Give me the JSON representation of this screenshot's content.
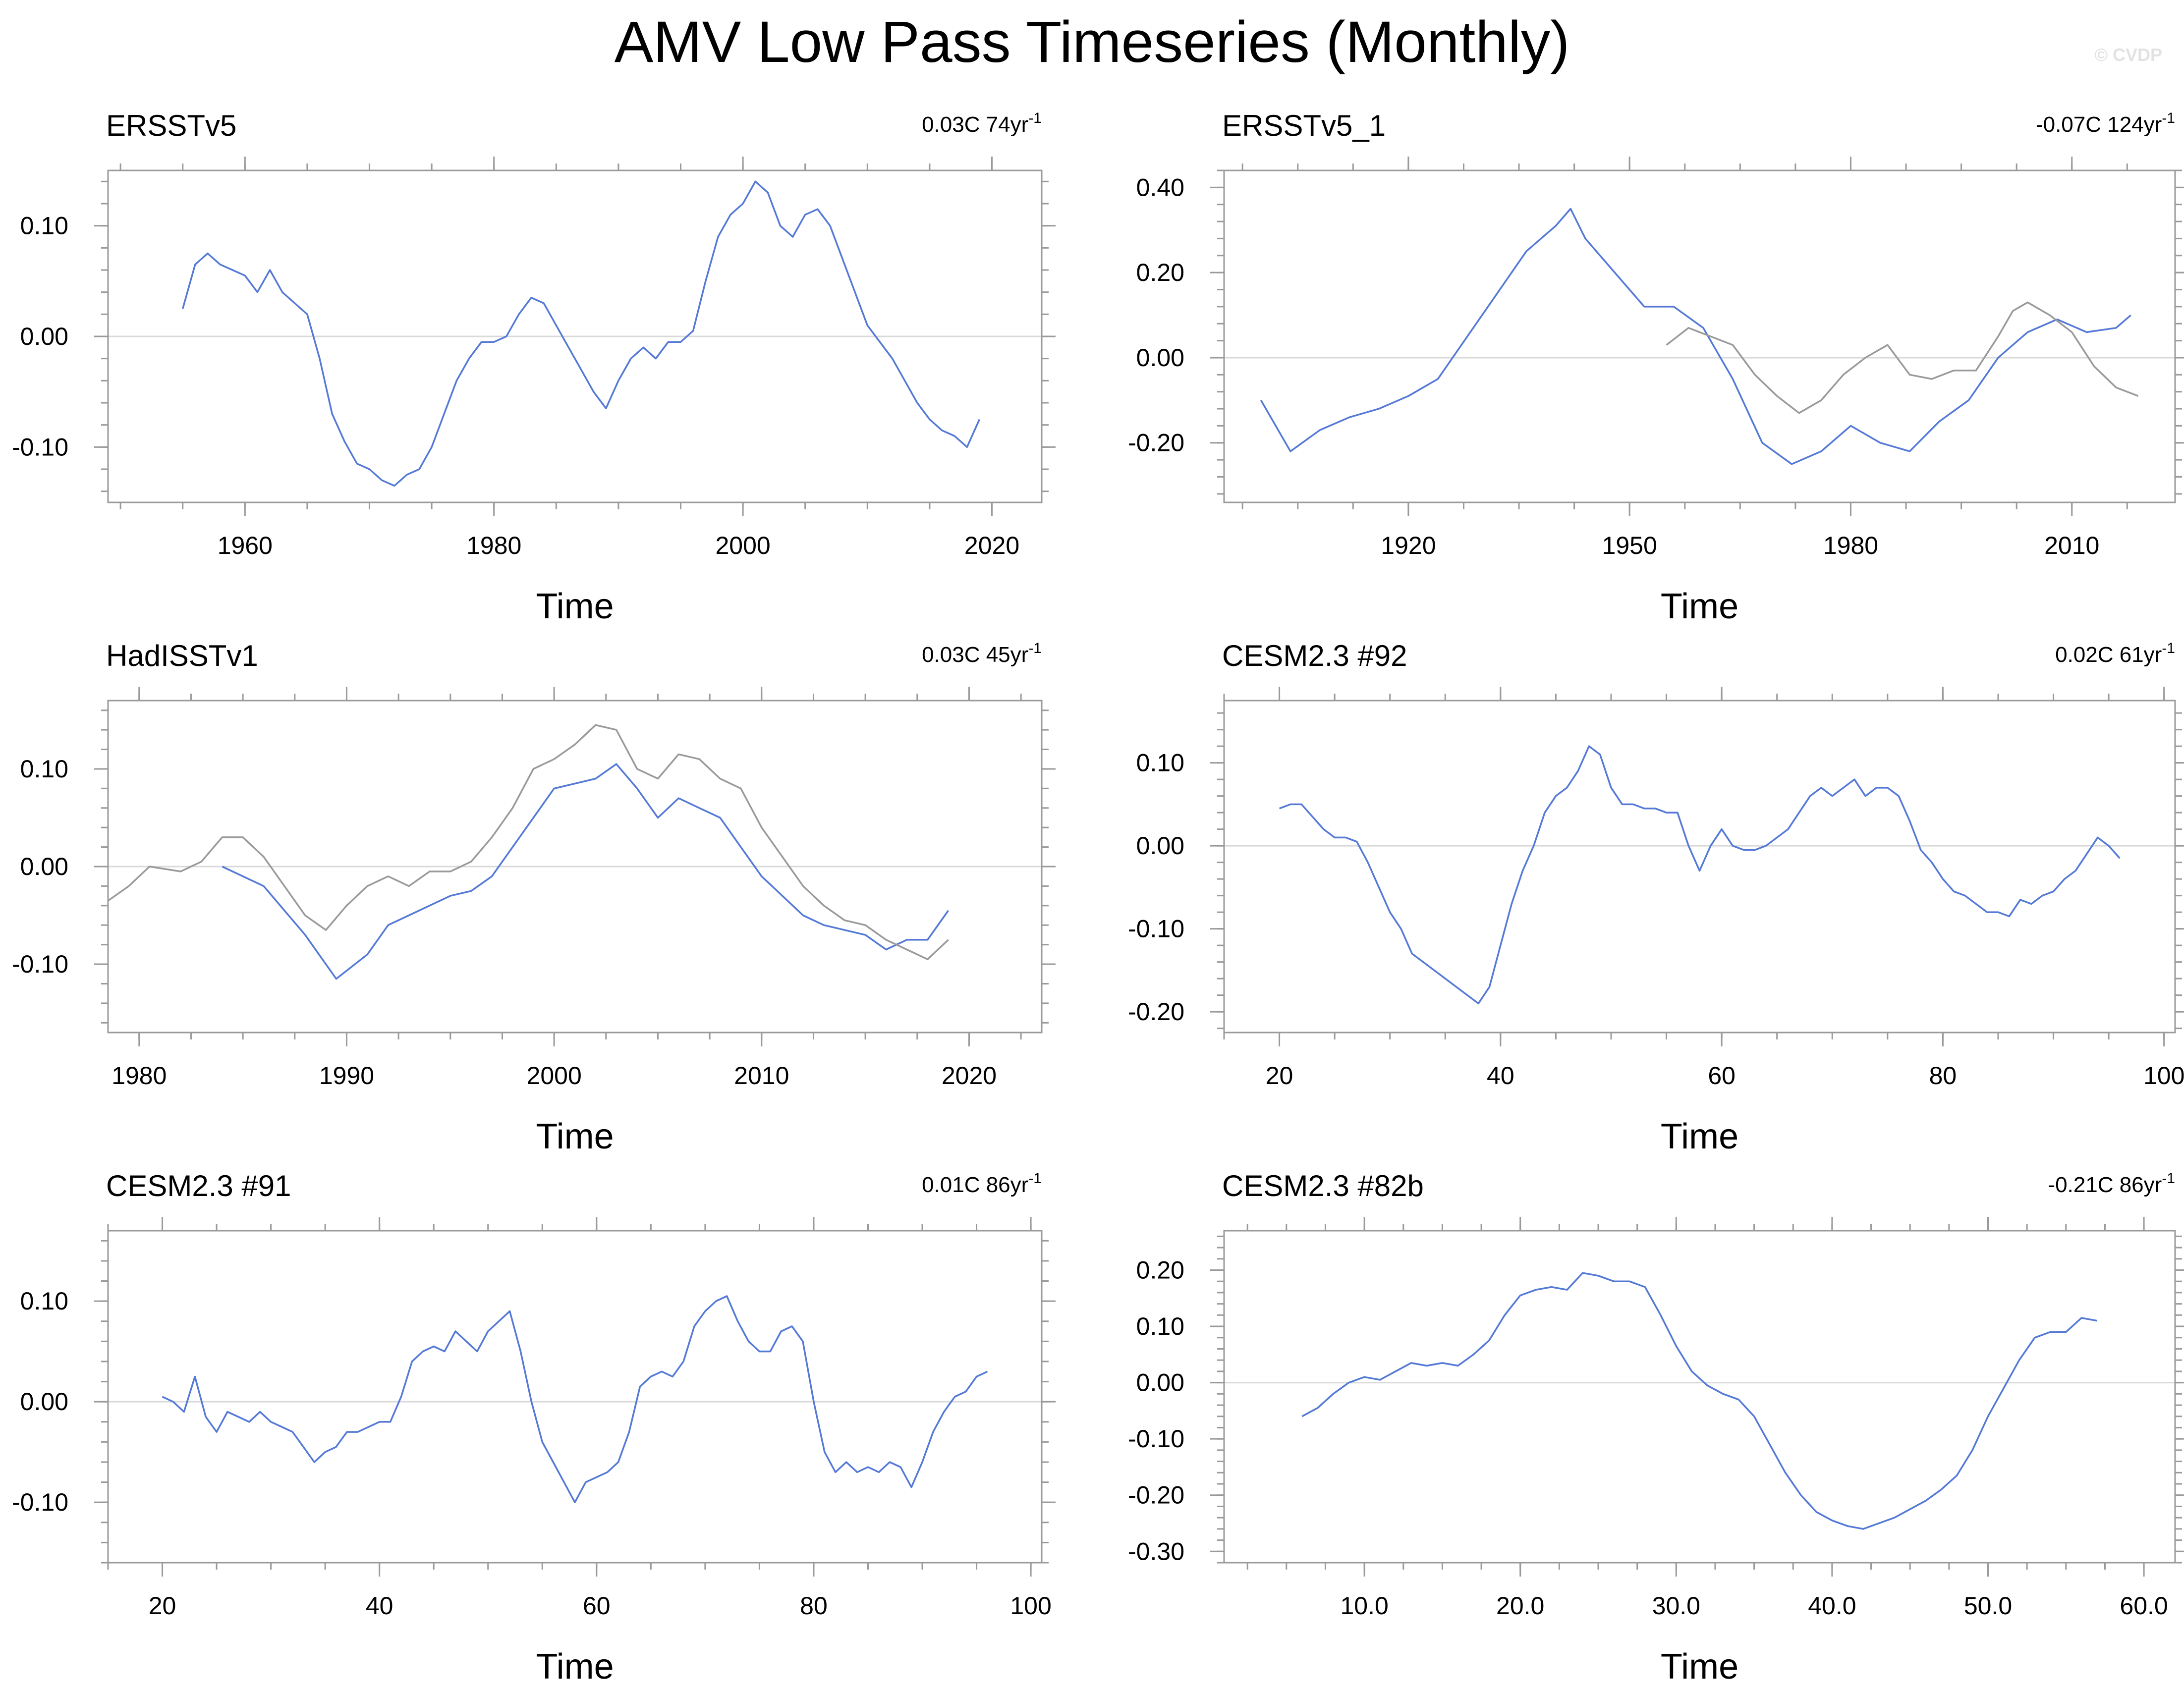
{
  "figure": {
    "title": "AMV Low Pass Timeseries (Monthly)",
    "watermark": "© CVDP",
    "colors": {
      "primary": "#5479d6",
      "secondary": "#9a9a9a",
      "frame": "#9a9a9a",
      "zero_line": "#d9d9d9"
    }
  },
  "chart_data": [
    {
      "type": "line",
      "title": "ERSSTv5",
      "trend": "0.03C 74yr",
      "trend_sup": "-1",
      "xlabel": "Time",
      "xlim": [
        1949,
        2024
      ],
      "ylim": [
        -0.15,
        0.15
      ],
      "xticks": [
        1960,
        1980,
        2000,
        2020
      ],
      "xtick_labels": [
        "1960",
        "1980",
        "2000",
        "2020"
      ],
      "yticks": [
        -0.1,
        0.0,
        0.1
      ],
      "ytick_labels": [
        "-0.10",
        "0.00",
        "0.10"
      ],
      "series": [
        {
          "name": "ERSSTv5",
          "color": "#5479d6",
          "x": [
            1955,
            1956,
            1957,
            1958,
            1959,
            1960,
            1961,
            1962,
            1963,
            1964,
            1965,
            1966,
            1967,
            1968,
            1969,
            1970,
            1971,
            1972,
            1973,
            1974,
            1975,
            1976,
            1977,
            1978,
            1979,
            1980,
            1981,
            1982,
            1983,
            1984,
            1985,
            1986,
            1987,
            1988,
            1989,
            1990,
            1991,
            1992,
            1993,
            1994,
            1995,
            1996,
            1997,
            1998,
            1999,
            2000,
            2001,
            2002,
            2003,
            2004,
            2005,
            2006,
            2007,
            2008,
            2009,
            2010,
            2011,
            2012,
            2013,
            2014,
            2015,
            2016,
            2017,
            2018,
            2019
          ],
          "y": [
            0.025,
            0.065,
            0.075,
            0.065,
            0.06,
            0.055,
            0.04,
            0.06,
            0.04,
            0.03,
            0.02,
            -0.02,
            -0.07,
            -0.095,
            -0.115,
            -0.12,
            -0.13,
            -0.135,
            -0.125,
            -0.12,
            -0.1,
            -0.07,
            -0.04,
            -0.02,
            -0.005,
            -0.005,
            0.0,
            0.02,
            0.035,
            0.03,
            0.01,
            -0.01,
            -0.03,
            -0.05,
            -0.065,
            -0.04,
            -0.02,
            -0.01,
            -0.02,
            -0.005,
            -0.005,
            0.005,
            0.05,
            0.09,
            0.11,
            0.12,
            0.14,
            0.13,
            0.1,
            0.09,
            0.11,
            0.115,
            0.1,
            0.07,
            0.04,
            0.01,
            -0.005,
            -0.02,
            -0.04,
            -0.06,
            -0.075,
            -0.085,
            -0.09,
            -0.1,
            -0.075
          ]
        }
      ]
    },
    {
      "type": "line",
      "title": "ERSSTv5_1",
      "trend": "-0.07C 124yr",
      "trend_sup": "-1",
      "xlabel": "Time",
      "xlim": [
        1895,
        2024
      ],
      "ylim": [
        -0.34,
        0.44
      ],
      "xticks": [
        1920,
        1950,
        1980,
        2010
      ],
      "xtick_labels": [
        "1920",
        "1950",
        "1980",
        "2010"
      ],
      "yticks": [
        -0.2,
        0.0,
        0.2,
        0.4
      ],
      "ytick_labels": [
        "-0.20",
        "0.00",
        "0.20",
        "0.40"
      ],
      "series": [
        {
          "name": "ERSSTv5_1",
          "color": "#5479d6",
          "x": [
            1900,
            1904,
            1908,
            1912,
            1916,
            1920,
            1924,
            1928,
            1932,
            1936,
            1940,
            1942,
            1944,
            1948,
            1952,
            1956,
            1960,
            1964,
            1968,
            1972,
            1976,
            1980,
            1984,
            1988,
            1992,
            1996,
            2000,
            2004,
            2008,
            2012,
            2016,
            2018
          ],
          "y": [
            -0.1,
            -0.22,
            -0.17,
            -0.14,
            -0.12,
            -0.09,
            -0.05,
            0.05,
            0.15,
            0.25,
            0.31,
            0.35,
            0.28,
            0.2,
            0.12,
            0.12,
            0.07,
            -0.05,
            -0.2,
            -0.25,
            -0.22,
            -0.16,
            -0.2,
            -0.22,
            -0.15,
            -0.1,
            0.0,
            0.06,
            0.09,
            0.06,
            0.07,
            0.1
          ]
        },
        {
          "name": "HadISSTv1",
          "color": "#9a9a9a",
          "x": [
            1955,
            1958,
            1961,
            1964,
            1967,
            1970,
            1973,
            1976,
            1979,
            1982,
            1985,
            1988,
            1991,
            1994,
            1997,
            2000,
            2002,
            2004,
            2007,
            2010,
            2013,
            2016,
            2019
          ],
          "y": [
            0.03,
            0.07,
            0.05,
            0.03,
            -0.04,
            -0.09,
            -0.13,
            -0.1,
            -0.04,
            0.0,
            0.03,
            -0.04,
            -0.05,
            -0.03,
            -0.03,
            0.05,
            0.11,
            0.13,
            0.1,
            0.06,
            -0.02,
            -0.07,
            -0.09
          ]
        }
      ]
    },
    {
      "type": "line",
      "title": "HadISSTv1",
      "trend": "0.03C 45yr",
      "trend_sup": "-1",
      "xlabel": "Time",
      "xlim": [
        1978.5,
        2023.5
      ],
      "ylim": [
        -0.17,
        0.17
      ],
      "xticks": [
        1980,
        1990,
        2000,
        2010,
        2020
      ],
      "xtick_labels": [
        "1980",
        "1990",
        "2000",
        "2010",
        "2020"
      ],
      "yticks": [
        -0.1,
        0.0,
        0.1
      ],
      "ytick_labels": [
        "-0.10",
        "0.00",
        "0.10"
      ],
      "series": [
        {
          "name": "HadISSTv1",
          "color": "#5479d6",
          "x": [
            1984,
            1986,
            1988,
            1989.5,
            1991,
            1992,
            1993,
            1994,
            1995,
            1996,
            1997,
            1998,
            1999,
            2000,
            2002,
            2003,
            2004,
            2005,
            2006,
            2007,
            2008,
            2009,
            2010,
            2011,
            2012,
            2013,
            2014,
            2015,
            2016,
            2017,
            2018,
            2019
          ],
          "y": [
            0.0,
            -0.02,
            -0.07,
            -0.115,
            -0.09,
            -0.06,
            -0.05,
            -0.04,
            -0.03,
            -0.025,
            -0.01,
            0.02,
            0.05,
            0.08,
            0.09,
            0.105,
            0.08,
            0.05,
            0.07,
            0.06,
            0.05,
            0.02,
            -0.01,
            -0.03,
            -0.05,
            -0.06,
            -0.065,
            -0.07,
            -0.085,
            -0.075,
            -0.075,
            -0.045
          ]
        },
        {
          "name": "ERSSTv5",
          "color": "#9a9a9a",
          "x": [
            1978.5,
            1979.5,
            1980.5,
            1982,
            1983,
            1984,
            1985,
            1986,
            1987,
            1988,
            1989,
            1990,
            1991,
            1992,
            1993,
            1994,
            1995,
            1996,
            1997,
            1998,
            1999,
            2000,
            2001,
            2002,
            2003,
            2004,
            2005,
            2006,
            2007,
            2008,
            2009,
            2010,
            2011,
            2012,
            2013,
            2014,
            2015,
            2016,
            2017,
            2018,
            2019
          ],
          "y": [
            -0.035,
            -0.02,
            0.0,
            -0.005,
            0.005,
            0.03,
            0.03,
            0.01,
            -0.02,
            -0.05,
            -0.065,
            -0.04,
            -0.02,
            -0.01,
            -0.02,
            -0.005,
            -0.005,
            0.005,
            0.03,
            0.06,
            0.1,
            0.11,
            0.125,
            0.145,
            0.14,
            0.1,
            0.09,
            0.115,
            0.11,
            0.09,
            0.08,
            0.04,
            0.01,
            -0.02,
            -0.04,
            -0.055,
            -0.06,
            -0.075,
            -0.085,
            -0.095,
            -0.075
          ]
        }
      ]
    },
    {
      "type": "line",
      "title": "CESM2.3 #92",
      "trend": "0.02C 61yr",
      "trend_sup": "-1",
      "xlabel": "Time",
      "xlim": [
        15,
        101
      ],
      "ylim": [
        -0.225,
        0.175
      ],
      "xticks": [
        20,
        40,
        60,
        80,
        100
      ],
      "xtick_labels": [
        "20",
        "40",
        "60",
        "80",
        "100"
      ],
      "yticks": [
        -0.2,
        -0.1,
        0.0,
        0.1
      ],
      "ytick_labels": [
        "-0.20",
        "-0.10",
        "0.00",
        "0.10"
      ],
      "series": [
        {
          "name": "CESM2.3 #92",
          "color": "#5479d6",
          "x": [
            20,
            21,
            22,
            23,
            24,
            25,
            26,
            27,
            28,
            29,
            30,
            31,
            32,
            33,
            34,
            35,
            36,
            37,
            38,
            39,
            40,
            41,
            42,
            43,
            44,
            45,
            46,
            47,
            48,
            49,
            50,
            51,
            52,
            53,
            54,
            55,
            56,
            57,
            58,
            59,
            60,
            61,
            62,
            63,
            64,
            65,
            66,
            67,
            68,
            69,
            70,
            71,
            72,
            73,
            74,
            75,
            76,
            77,
            78,
            79,
            80,
            81,
            82,
            83,
            84,
            85,
            86,
            87,
            88,
            89,
            90,
            91,
            92,
            93,
            94,
            95,
            96
          ],
          "y": [
            0.045,
            0.05,
            0.05,
            0.035,
            0.02,
            0.01,
            0.01,
            0.005,
            -0.02,
            -0.05,
            -0.08,
            -0.1,
            -0.13,
            -0.14,
            -0.15,
            -0.16,
            -0.17,
            -0.18,
            -0.19,
            -0.17,
            -0.12,
            -0.07,
            -0.03,
            0.0,
            0.04,
            0.06,
            0.07,
            0.09,
            0.12,
            0.11,
            0.07,
            0.05,
            0.05,
            0.045,
            0.045,
            0.04,
            0.04,
            0.0,
            -0.03,
            0.0,
            0.02,
            0.0,
            -0.005,
            -0.005,
            0.0,
            0.01,
            0.02,
            0.04,
            0.06,
            0.07,
            0.06,
            0.07,
            0.08,
            0.06,
            0.07,
            0.07,
            0.06,
            0.03,
            -0.005,
            -0.02,
            -0.04,
            -0.055,
            -0.06,
            -0.07,
            -0.08,
            -0.08,
            -0.085,
            -0.065,
            -0.07,
            -0.06,
            -0.055,
            -0.04,
            -0.03,
            -0.01,
            0.01,
            0.0,
            -0.015
          ]
        }
      ]
    },
    {
      "type": "line",
      "title": "CESM2.3 #91",
      "trend": "0.01C 86yr",
      "trend_sup": "-1",
      "xlabel": "Time",
      "xlim": [
        15,
        101
      ],
      "ylim": [
        -0.16,
        0.17
      ],
      "xticks": [
        20,
        40,
        60,
        80,
        100
      ],
      "xtick_labels": [
        "20",
        "40",
        "60",
        "80",
        "100"
      ],
      "yticks": [
        -0.1,
        0.0,
        0.1
      ],
      "ytick_labels": [
        "-0.10",
        "0.00",
        "0.10"
      ],
      "series": [
        {
          "name": "CESM2.3 #91",
          "color": "#5479d6",
          "x": [
            20,
            21,
            22,
            23,
            24,
            25,
            26,
            27,
            28,
            29,
            30,
            31,
            32,
            33,
            34,
            35,
            36,
            37,
            38,
            39,
            40,
            41,
            42,
            43,
            44,
            45,
            46,
            47,
            48,
            49,
            50,
            51,
            52,
            53,
            54,
            55,
            56,
            57,
            58,
            59,
            60,
            61,
            62,
            63,
            64,
            65,
            66,
            67,
            68,
            69,
            70,
            71,
            72,
            73,
            74,
            75,
            76,
            77,
            78,
            79,
            80,
            81,
            82,
            83,
            84,
            85,
            86,
            87,
            88,
            89,
            90,
            91,
            92,
            93,
            94,
            95,
            96
          ],
          "y": [
            0.005,
            0.0,
            -0.01,
            0.025,
            -0.015,
            -0.03,
            -0.01,
            -0.015,
            -0.02,
            -0.01,
            -0.02,
            -0.025,
            -0.03,
            -0.045,
            -0.06,
            -0.05,
            -0.045,
            -0.03,
            -0.03,
            -0.025,
            -0.02,
            -0.02,
            0.005,
            0.04,
            0.05,
            0.055,
            0.05,
            0.07,
            0.06,
            0.05,
            0.07,
            0.08,
            0.09,
            0.05,
            0.0,
            -0.04,
            -0.06,
            -0.08,
            -0.1,
            -0.08,
            -0.075,
            -0.07,
            -0.06,
            -0.03,
            0.015,
            0.025,
            0.03,
            0.025,
            0.04,
            0.075,
            0.09,
            0.1,
            0.105,
            0.08,
            0.06,
            0.05,
            0.05,
            0.07,
            0.075,
            0.06,
            0.0,
            -0.05,
            -0.07,
            -0.06,
            -0.07,
            -0.065,
            -0.07,
            -0.06,
            -0.065,
            -0.085,
            -0.06,
            -0.03,
            -0.01,
            0.005,
            0.01,
            0.025,
            0.03
          ]
        }
      ]
    },
    {
      "type": "line",
      "title": "CESM2.3 #82b",
      "trend": "-0.21C 86yr",
      "trend_sup": "-1",
      "xlabel": "Time",
      "xlim": [
        1,
        62
      ],
      "ylim": [
        -0.32,
        0.27
      ],
      "xticks": [
        10,
        20,
        30,
        40,
        50,
        60
      ],
      "xtick_labels": [
        "10.0",
        "20.0",
        "30.0",
        "40.0",
        "50.0",
        "60.0"
      ],
      "yticks": [
        -0.3,
        -0.2,
        -0.1,
        0.0,
        0.1,
        0.2
      ],
      "ytick_labels": [
        "-0.30",
        "-0.20",
        "-0.10",
        "0.00",
        "0.10",
        "0.20"
      ],
      "series": [
        {
          "name": "CESM2.3 #82b",
          "color": "#5479d6",
          "x": [
            6,
            7,
            8,
            9,
            10,
            11,
            12,
            13,
            14,
            15,
            16,
            17,
            18,
            19,
            20,
            21,
            22,
            23,
            24,
            25,
            26,
            27,
            28,
            29,
            30,
            31,
            32,
            33,
            34,
            35,
            36,
            37,
            38,
            39,
            40,
            41,
            42,
            43,
            44,
            45,
            46,
            47,
            48,
            49,
            50,
            51,
            52,
            53,
            54,
            55,
            56,
            57
          ],
          "y": [
            -0.06,
            -0.045,
            -0.02,
            0.0,
            0.01,
            0.005,
            0.02,
            0.035,
            0.03,
            0.035,
            0.03,
            0.05,
            0.075,
            0.12,
            0.155,
            0.165,
            0.17,
            0.165,
            0.195,
            0.19,
            0.18,
            0.18,
            0.17,
            0.12,
            0.065,
            0.02,
            -0.005,
            -0.02,
            -0.03,
            -0.06,
            -0.11,
            -0.16,
            -0.2,
            -0.23,
            -0.245,
            -0.255,
            -0.26,
            -0.25,
            -0.24,
            -0.225,
            -0.21,
            -0.19,
            -0.165,
            -0.12,
            -0.06,
            -0.01,
            0.04,
            0.08,
            0.09,
            0.09,
            0.115,
            0.11
          ]
        }
      ]
    }
  ]
}
